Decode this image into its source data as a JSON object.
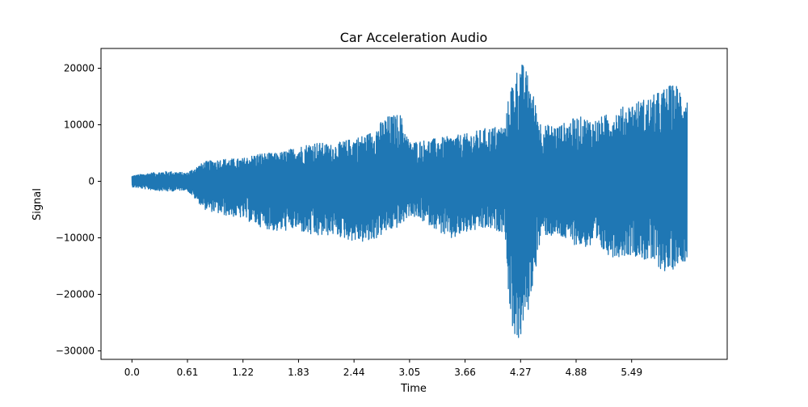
{
  "chart_data": {
    "type": "line",
    "title": "Car Acceleration Audio",
    "xlabel": "Time",
    "ylabel": "Signal",
    "xlim": [
      -0.34,
      6.54
    ],
    "ylim": [
      -31500,
      23500
    ],
    "x_ticks": [
      0.0,
      0.61,
      1.22,
      1.83,
      2.44,
      3.05,
      3.66,
      4.27,
      4.88,
      5.49
    ],
    "x_tick_labels": [
      "0.0",
      "0.61",
      "1.22",
      "1.83",
      "2.44",
      "3.05",
      "3.66",
      "4.27",
      "4.88",
      "5.49"
    ],
    "y_ticks": [
      -30000,
      -20000,
      -10000,
      0,
      10000,
      20000
    ],
    "y_tick_labels": [
      "−30000",
      "−20000",
      "−10000",
      "0",
      "10000",
      "20000"
    ],
    "grid": false,
    "series": [
      {
        "color": "#1f77b4",
        "time_range": [
          0.0,
          6.1
        ],
        "envelope_upper": [
          [
            0.0,
            1000
          ],
          [
            0.2,
            1500
          ],
          [
            0.4,
            1800
          ],
          [
            0.6,
            1500
          ],
          [
            0.8,
            3500
          ],
          [
            1.0,
            4000
          ],
          [
            1.2,
            4000
          ],
          [
            1.4,
            5000
          ],
          [
            1.6,
            5000
          ],
          [
            1.8,
            6000
          ],
          [
            2.0,
            7000
          ],
          [
            2.2,
            6500
          ],
          [
            2.4,
            7500
          ],
          [
            2.6,
            8500
          ],
          [
            2.8,
            11500
          ],
          [
            2.95,
            12000
          ],
          [
            3.05,
            7000
          ],
          [
            3.3,
            7500
          ],
          [
            3.5,
            8000
          ],
          [
            3.7,
            8500
          ],
          [
            3.9,
            9500
          ],
          [
            4.1,
            10000
          ],
          [
            4.15,
            16500
          ],
          [
            4.27,
            21500
          ],
          [
            4.35,
            19000
          ],
          [
            4.5,
            10000
          ],
          [
            4.7,
            10000
          ],
          [
            4.9,
            11500
          ],
          [
            5.1,
            11000
          ],
          [
            5.3,
            12500
          ],
          [
            5.5,
            14000
          ],
          [
            5.7,
            15000
          ],
          [
            5.9,
            17000
          ],
          [
            6.0,
            17200
          ],
          [
            6.1,
            15000
          ]
        ],
        "envelope_lower": [
          [
            0.0,
            -1000
          ],
          [
            0.2,
            -1500
          ],
          [
            0.4,
            -1800
          ],
          [
            0.6,
            -1500
          ],
          [
            0.8,
            -5000
          ],
          [
            1.0,
            -6000
          ],
          [
            1.2,
            -6500
          ],
          [
            1.4,
            -8000
          ],
          [
            1.6,
            -9000
          ],
          [
            1.8,
            -8500
          ],
          [
            2.0,
            -10000
          ],
          [
            2.2,
            -9500
          ],
          [
            2.4,
            -10500
          ],
          [
            2.6,
            -11000
          ],
          [
            2.8,
            -9000
          ],
          [
            2.95,
            -8000
          ],
          [
            3.05,
            -6000
          ],
          [
            3.3,
            -8000
          ],
          [
            3.5,
            -10500
          ],
          [
            3.7,
            -9000
          ],
          [
            3.9,
            -8500
          ],
          [
            4.1,
            -9000
          ],
          [
            4.15,
            -24000
          ],
          [
            4.24,
            -29500
          ],
          [
            4.35,
            -23500
          ],
          [
            4.5,
            -9500
          ],
          [
            4.7,
            -10000
          ],
          [
            4.9,
            -11500
          ],
          [
            5.1,
            -12000
          ],
          [
            5.3,
            -13500
          ],
          [
            5.5,
            -13000
          ],
          [
            5.7,
            -14500
          ],
          [
            5.9,
            -16500
          ],
          [
            6.0,
            -14500
          ],
          [
            6.1,
            -14000
          ]
        ]
      }
    ]
  }
}
